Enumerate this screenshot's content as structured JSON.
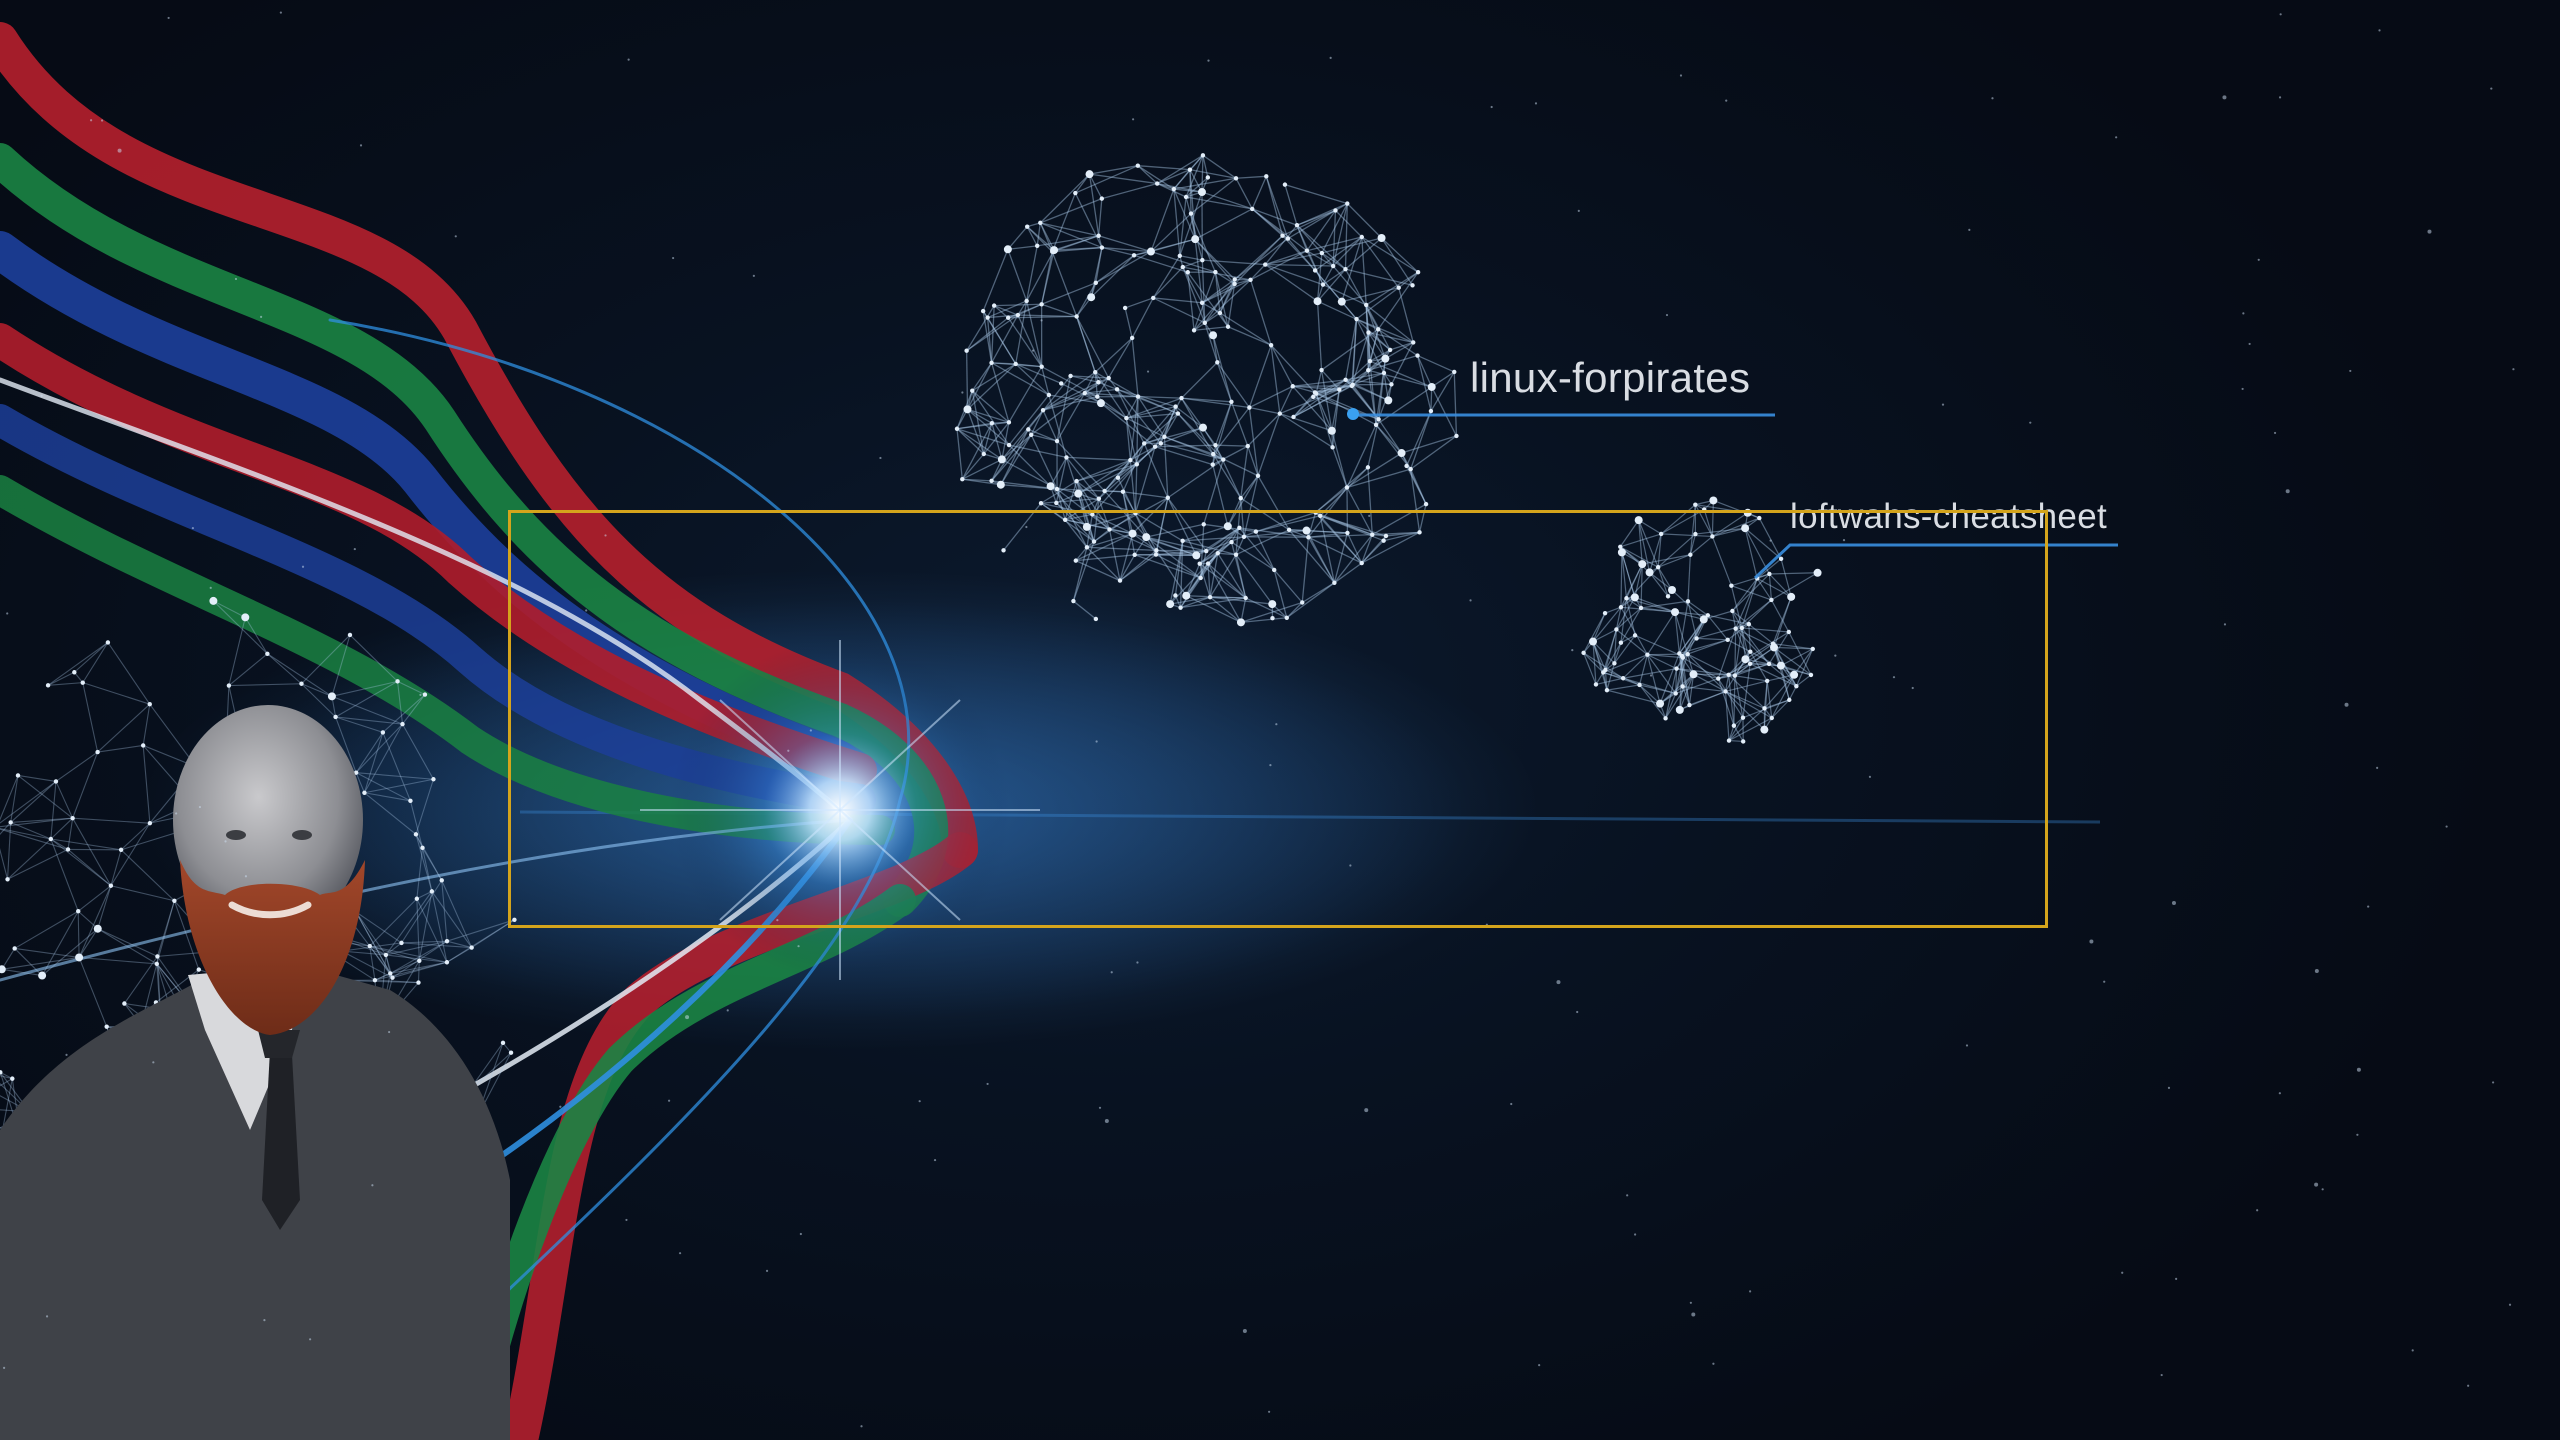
{
  "desktop": {
    "wallpaper": "network-constellation-with-portrait",
    "clusters": [
      {
        "label": "linux-forpirates"
      },
      {
        "label": "loftwahs-cheatsheet"
      }
    ],
    "selection": {
      "color": "#d4a41c"
    },
    "ribbon_colors": [
      "#c0202e",
      "#1d8a46",
      "#1c3f9c",
      "#dfe8f5",
      "#2f8fe0"
    ]
  }
}
